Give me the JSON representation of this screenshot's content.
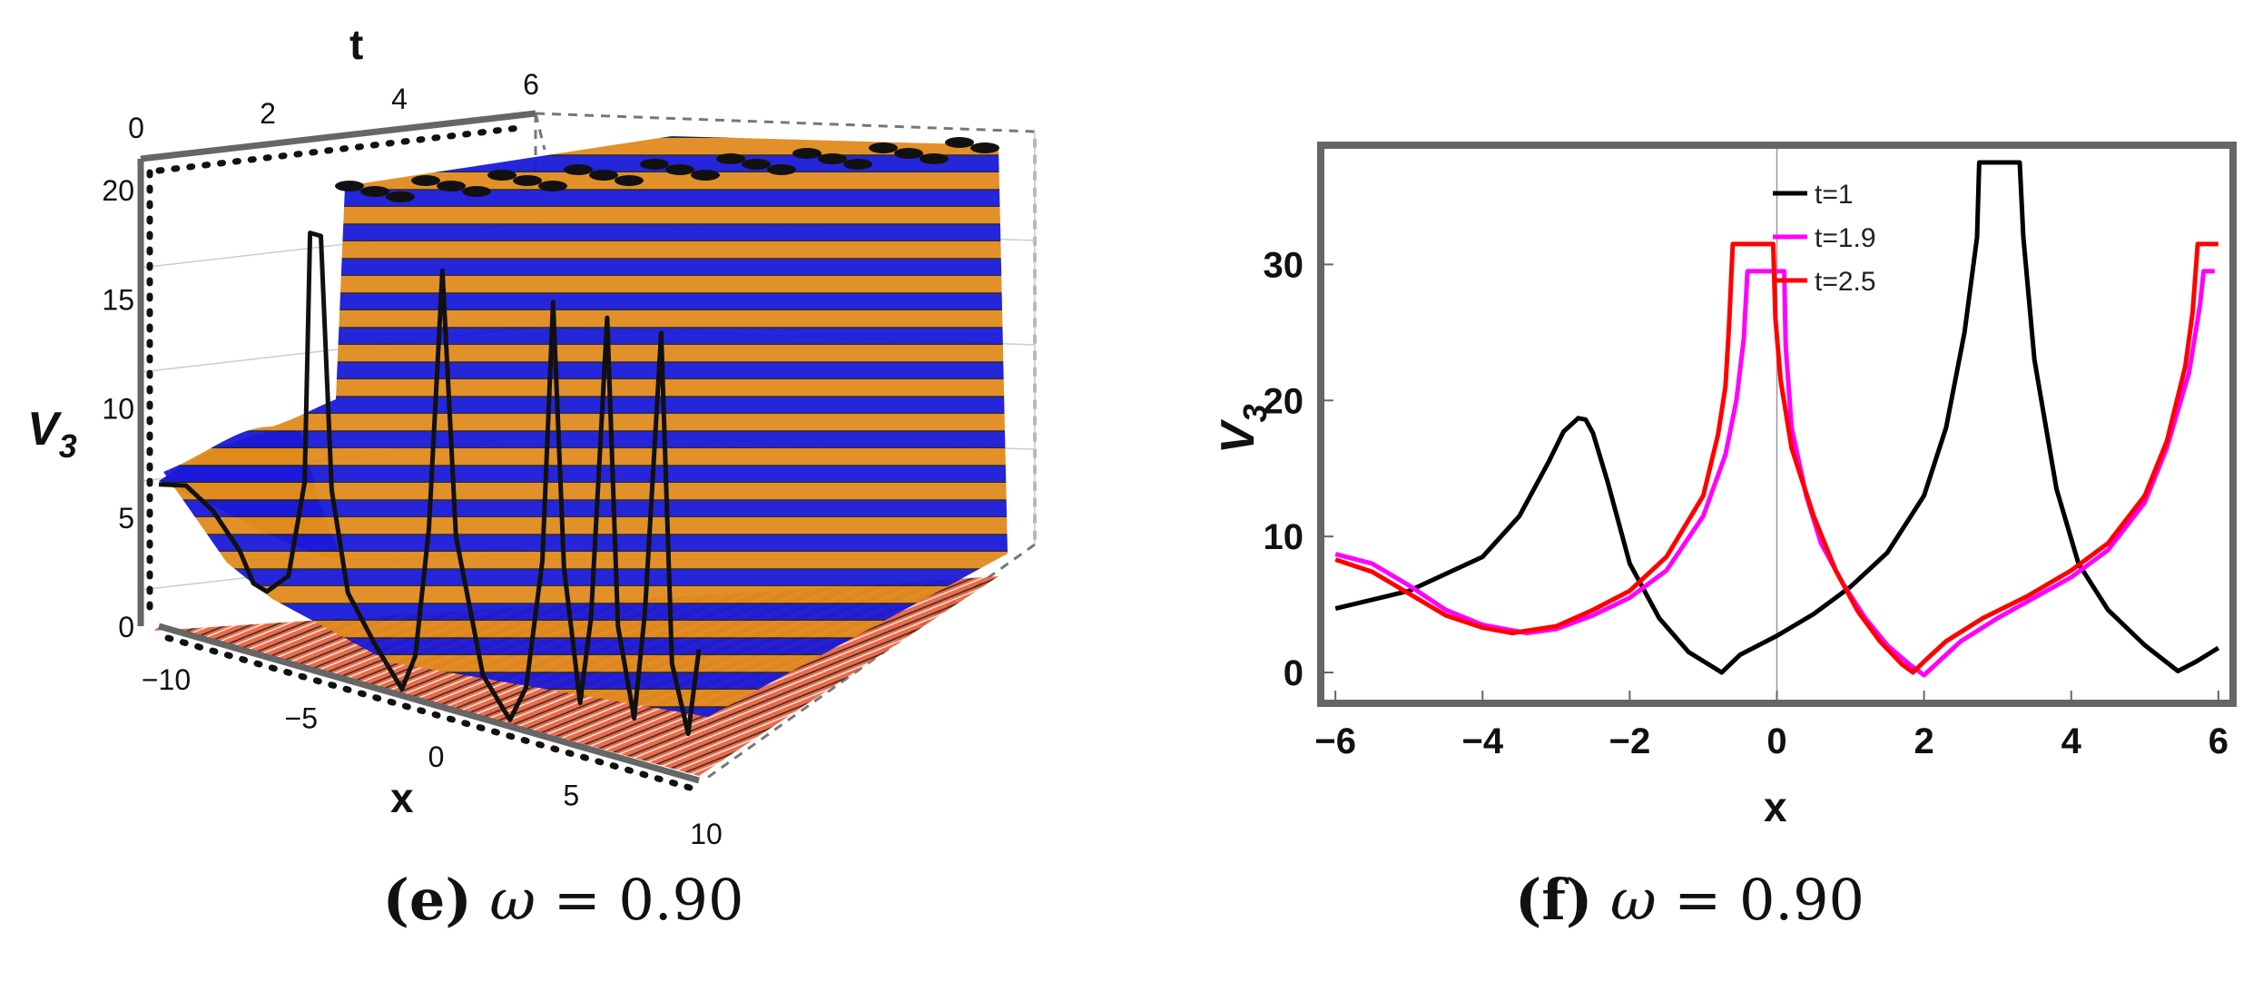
{
  "panels": {
    "e": {
      "caption_letter": "(e)",
      "caption_symbol": "ω",
      "caption_rest": " = 0.90"
    },
    "f": {
      "caption_letter": "(f)",
      "caption_symbol": "ω",
      "caption_rest": " = 0.90"
    }
  },
  "chart_data": [
    {
      "type": "surface",
      "panel": "e",
      "xlabel": "x",
      "ylabel": "t",
      "zlabel": "V",
      "zlabel_sub": "3",
      "x_ticks": [
        "−10",
        "−5",
        "0",
        "5",
        "10"
      ],
      "t_ticks": [
        "0",
        "2",
        "4",
        "6"
      ],
      "z_ticks": [
        "0",
        "5",
        "10",
        "15",
        "20"
      ],
      "x_range": [
        -10,
        10
      ],
      "t_range": [
        0,
        6
      ],
      "z_range": [
        0,
        21
      ],
      "colors": {
        "surface_a": "#e08a1e",
        "surface_b": "#1a1ad8",
        "floor": "#e8603a"
      },
      "front_curve": {
        "x": [
          -10,
          -9,
          -8,
          -7,
          -6.5,
          -6,
          -5.2,
          -4.6,
          -4.4,
          -4,
          -3.6,
          -3,
          -2,
          -1,
          -0.5,
          0,
          0.5,
          1,
          2,
          3,
          3.6,
          4.2,
          4.6,
          5,
          5.6,
          6,
          6.6,
          7,
          7.6,
          8,
          8.6,
          9,
          9.6,
          10
        ],
        "z": [
          6.5,
          6.8,
          6.0,
          4.5,
          3.2,
          3.0,
          4.0,
          8.5,
          20.0,
          20.0,
          8.5,
          4.0,
          2.0,
          0.3,
          2.0,
          8.0,
          20.0,
          8.0,
          2.0,
          0.3,
          2.0,
          8.0,
          20.0,
          8.0,
          2.0,
          6.0,
          20.0,
          6.0,
          2.0,
          7.0,
          20.0,
          5.0,
          2.0,
          6.0
        ]
      }
    },
    {
      "type": "line",
      "panel": "f",
      "title": "",
      "xlabel": "x",
      "ylabel": "V",
      "ylabel_sub": "3",
      "xlim": [
        -6.15,
        6.15
      ],
      "ylim": [
        -2,
        38.5
      ],
      "x_ticks": [
        -6,
        -4,
        -2,
        0,
        2,
        4,
        6
      ],
      "y_ticks": [
        0,
        10,
        20,
        30
      ],
      "x_tick_labels": [
        "−6",
        "−4",
        "−2",
        "0",
        "2",
        "4",
        "6"
      ],
      "y_tick_labels": [
        "0",
        "10",
        "20",
        "30"
      ],
      "legend_position": "top-center",
      "series": [
        {
          "name": "t=1",
          "color": "#000000",
          "x": [
            -6.0,
            -5.0,
            -4.0,
            -3.5,
            -3.1,
            -2.9,
            -2.7,
            -2.6,
            -2.5,
            -2.3,
            -2.0,
            -1.6,
            -1.2,
            -0.75,
            -0.5,
            0.0,
            0.5,
            1.0,
            1.5,
            2.0,
            2.3,
            2.55,
            2.72,
            2.75,
            3.3,
            3.35,
            3.5,
            3.8,
            4.1,
            4.5,
            5.0,
            5.45,
            5.7,
            6.0
          ],
          "y": [
            4.7,
            6.0,
            8.5,
            11.5,
            15.5,
            17.7,
            18.7,
            18.6,
            17.6,
            14.0,
            8.0,
            4.0,
            1.5,
            0.0,
            1.3,
            2.7,
            4.3,
            6.3,
            8.8,
            13.0,
            18.0,
            25.0,
            32.0,
            37.5,
            37.5,
            32.0,
            23.0,
            13.5,
            8.0,
            4.6,
            2.0,
            0.1,
            0.8,
            1.8
          ]
        },
        {
          "name": "t=1.9",
          "color": "#ff00ff",
          "x": [
            -6.0,
            -5.5,
            -5.0,
            -4.5,
            -4.0,
            -3.4,
            -3.0,
            -2.5,
            -2.0,
            -1.5,
            -1.0,
            -0.7,
            -0.55,
            -0.45,
            -0.4,
            0.1,
            0.12,
            0.2,
            0.4,
            0.6,
            0.9,
            1.2,
            1.5,
            1.8,
            2.0,
            2.2,
            2.5,
            3.0,
            3.5,
            4.0,
            4.5,
            5.0,
            5.3,
            5.6,
            5.75,
            5.8,
            5.95
          ],
          "y": [
            8.7,
            8.0,
            6.4,
            4.6,
            3.5,
            2.9,
            3.2,
            4.2,
            5.5,
            7.5,
            11.5,
            16.0,
            20.0,
            24.5,
            29.5,
            29.5,
            24.0,
            18.0,
            13.0,
            9.5,
            6.5,
            4.0,
            2.0,
            0.6,
            -0.2,
            0.8,
            2.3,
            4.0,
            5.5,
            7.0,
            9.0,
            12.5,
            16.5,
            22.0,
            27.0,
            29.5,
            29.5
          ]
        },
        {
          "name": "t=2.5",
          "color": "#ff0000",
          "x": [
            -6.0,
            -5.5,
            -5.0,
            -4.5,
            -4.0,
            -3.6,
            -3.0,
            -2.5,
            -2.0,
            -1.5,
            -1.0,
            -0.8,
            -0.7,
            -0.65,
            -0.6,
            -0.05,
            -0.02,
            0.05,
            0.2,
            0.5,
            0.8,
            1.1,
            1.4,
            1.7,
            1.85,
            2.0,
            2.3,
            2.8,
            3.4,
            4.0,
            4.5,
            5.0,
            5.3,
            5.55,
            5.65,
            5.72,
            6.0
          ],
          "y": [
            8.3,
            7.4,
            5.8,
            4.2,
            3.3,
            2.9,
            3.4,
            4.6,
            6.0,
            8.5,
            13.0,
            17.5,
            21.0,
            25.5,
            31.5,
            31.5,
            26.0,
            21.5,
            16.5,
            11.5,
            7.5,
            4.5,
            2.3,
            0.6,
            0.0,
            0.8,
            2.3,
            4.0,
            5.6,
            7.5,
            9.5,
            13.0,
            17.0,
            22.5,
            26.5,
            31.5,
            31.5
          ]
        }
      ]
    }
  ]
}
